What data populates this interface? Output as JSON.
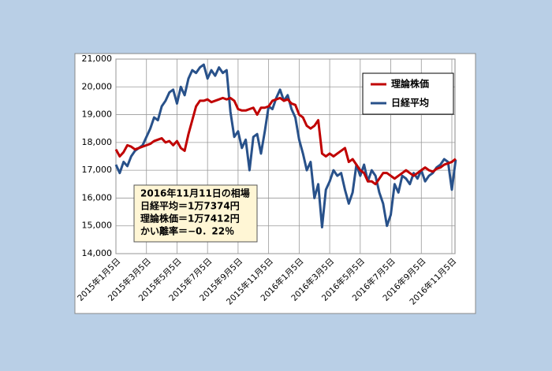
{
  "chart_data": {
    "type": "line",
    "categories": [
      "2015年1月5日",
      null,
      null,
      null,
      null,
      null,
      null,
      null,
      "2015年3月5日",
      null,
      null,
      null,
      null,
      null,
      null,
      null,
      "2015年5月5日",
      null,
      null,
      null,
      null,
      null,
      null,
      null,
      "2015年7月5日",
      null,
      null,
      null,
      null,
      null,
      null,
      null,
      "2015年9月5日",
      null,
      null,
      null,
      null,
      null,
      null,
      null,
      "2015年11月5日",
      null,
      null,
      null,
      null,
      null,
      null,
      null,
      "2016年1月5日",
      null,
      null,
      null,
      null,
      null,
      null,
      null,
      "2016年3月5日",
      null,
      null,
      null,
      null,
      null,
      null,
      null,
      "2016年5月5日",
      null,
      null,
      null,
      null,
      null,
      null,
      null,
      "2016年7月5日",
      null,
      null,
      null,
      null,
      null,
      null,
      null,
      "2016年9月5日",
      null,
      null,
      null,
      null,
      null,
      null,
      null,
      "2016年11月5日",
      null
    ],
    "series": [
      {
        "name": "理論株価",
        "color": "#c00000",
        "values": [
          17750,
          17500,
          17650,
          17900,
          17850,
          17750,
          17800,
          17850,
          17900,
          17950,
          18050,
          18100,
          18150,
          18000,
          18050,
          17900,
          18050,
          17800,
          17700,
          18300,
          18800,
          19300,
          19500,
          19500,
          19550,
          19450,
          19500,
          19550,
          19600,
          19550,
          19600,
          19500,
          19200,
          19150,
          19150,
          19200,
          19250,
          19000,
          19250,
          19250,
          19300,
          19500,
          19550,
          19600,
          19500,
          19550,
          19400,
          19350,
          19000,
          18900,
          18600,
          18500,
          18600,
          18800,
          17600,
          17500,
          17600,
          17500,
          17600,
          17700,
          17800,
          17300,
          17400,
          17200,
          17000,
          16900,
          16600,
          16600,
          16500,
          16700,
          16900,
          16900,
          16800,
          16700,
          16800,
          16900,
          17000,
          16900,
          16800,
          16900,
          17000,
          17100,
          17000,
          16950,
          17050,
          17100,
          17200,
          17250,
          17300,
          17412
        ]
      },
      {
        "name": "日経平均",
        "color": "#28518a",
        "values": [
          17200,
          16900,
          17300,
          17150,
          17500,
          17700,
          17800,
          17900,
          18200,
          18500,
          18900,
          18800,
          19300,
          19500,
          19800,
          19900,
          19400,
          20000,
          19700,
          20300,
          20600,
          20500,
          20700,
          20800,
          20300,
          20600,
          20400,
          20700,
          20500,
          20600,
          19100,
          18200,
          18400,
          17800,
          18100,
          17000,
          18200,
          18300,
          17600,
          18400,
          19300,
          19200,
          19600,
          19900,
          19500,
          19700,
          19200,
          18900,
          18100,
          17600,
          17000,
          17300,
          16000,
          16500,
          14950,
          16300,
          16600,
          17000,
          16800,
          16900,
          16300,
          15800,
          16200,
          17200,
          16800,
          17200,
          16600,
          17000,
          16800,
          16200,
          15800,
          15000,
          15400,
          16500,
          16200,
          16800,
          16700,
          16500,
          16900,
          16700,
          17000,
          16600,
          16800,
          16900,
          17100,
          17200,
          17400,
          17300,
          16300,
          17374
        ]
      }
    ],
    "ylim": [
      14000,
      21000
    ],
    "yticks": [
      {
        "value": 14000,
        "label": "14,000"
      },
      {
        "value": 15000,
        "label": "15,000"
      },
      {
        "value": 16000,
        "label": "16,000"
      },
      {
        "value": 17000,
        "label": "17,000"
      },
      {
        "value": 18000,
        "label": "18,000"
      },
      {
        "value": 19000,
        "label": "19,000"
      },
      {
        "value": 20000,
        "label": "20,000"
      },
      {
        "value": 21000,
        "label": "21,000"
      }
    ],
    "grid": true,
    "legend": "upper right",
    "annotations": [
      "2016年11月11日の相場",
      "日経平均＝1万7374円",
      "理論株価＝1万7412円",
      "かい離率＝−0．22％"
    ]
  }
}
